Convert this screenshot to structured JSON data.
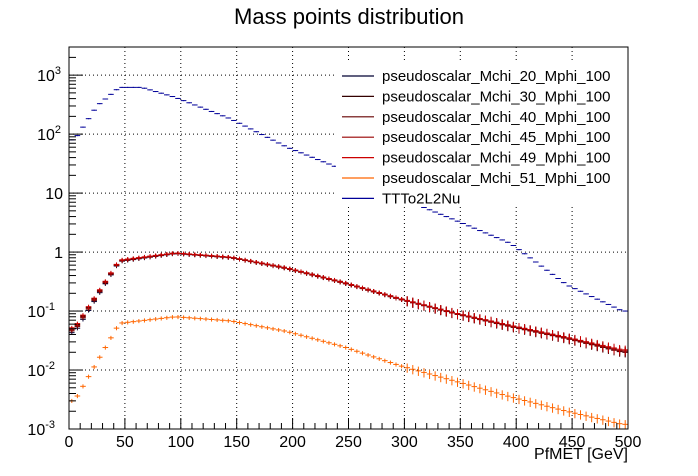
{
  "chart_data": {
    "type": "histogram",
    "title": "Mass points distribution",
    "xlabel": "PfMET [GeV]",
    "ylabel": "",
    "xlim": [
      0,
      500
    ],
    "ylim": [
      0.001,
      3000
    ],
    "y_scale": "log",
    "grid": true,
    "legend_placement": "top-right",
    "x_ticks": [
      {
        "value": 0,
        "label": "0"
      },
      {
        "value": 50,
        "label": "50"
      },
      {
        "value": 100,
        "label": "100"
      },
      {
        "value": 150,
        "label": "150"
      },
      {
        "value": 200,
        "label": "200"
      },
      {
        "value": 250,
        "label": "250"
      },
      {
        "value": 300,
        "label": "300"
      },
      {
        "value": 350,
        "label": "350"
      },
      {
        "value": 400,
        "label": "400"
      },
      {
        "value": 450,
        "label": "450"
      },
      {
        "value": 500,
        "label": "500"
      }
    ],
    "y_ticks": [
      {
        "value": 0.001,
        "base": "10",
        "exp": "-3"
      },
      {
        "value": 0.01,
        "base": "10",
        "exp": "-2"
      },
      {
        "value": 0.1,
        "base": "10",
        "exp": "-1"
      },
      {
        "value": 1,
        "base": "1",
        "exp": ""
      },
      {
        "value": 10,
        "base": "10",
        "exp": ""
      },
      {
        "value": 100,
        "base": "10",
        "exp": "2"
      },
      {
        "value": 1000,
        "base": "10",
        "exp": "3"
      }
    ],
    "series": [
      {
        "name": "pseudoscalar_Mchi_20_Mphi_100",
        "color": "#000033",
        "x": [
          5,
          45,
          95,
          145,
          195,
          245,
          295,
          345,
          395,
          445,
          495
        ],
        "y": [
          0.043,
          0.69,
          0.94,
          0.8,
          0.53,
          0.3,
          0.16,
          0.09,
          0.055,
          0.035,
          0.02
        ]
      },
      {
        "name": "pseudoscalar_Mchi_30_Mphi_100",
        "color": "#330000",
        "x": [
          5,
          45,
          95,
          145,
          195,
          245,
          295,
          345,
          395,
          445,
          495
        ],
        "y": [
          0.05,
          0.72,
          0.96,
          0.82,
          0.54,
          0.31,
          0.165,
          0.093,
          0.057,
          0.036,
          0.021
        ]
      },
      {
        "name": "pseudoscalar_Mchi_40_Mphi_100",
        "color": "#660000",
        "x": [
          5,
          45,
          95,
          145,
          195,
          245,
          295,
          345,
          395,
          445,
          495
        ],
        "y": [
          0.046,
          0.7,
          0.95,
          0.8,
          0.52,
          0.3,
          0.16,
          0.09,
          0.054,
          0.034,
          0.02
        ]
      },
      {
        "name": "pseudoscalar_Mchi_45_Mphi_100",
        "color": "#990000",
        "x": [
          5,
          45,
          95,
          145,
          195,
          245,
          295,
          345,
          395,
          445,
          495
        ],
        "y": [
          0.048,
          0.71,
          0.95,
          0.81,
          0.53,
          0.3,
          0.16,
          0.091,
          0.056,
          0.035,
          0.021
        ]
      },
      {
        "name": "pseudoscalar_Mchi_49_Mphi_100",
        "color": "#cc0000",
        "x": [
          5,
          45,
          95,
          145,
          195,
          245,
          295,
          345,
          395,
          445,
          495
        ],
        "y": [
          0.052,
          0.73,
          0.97,
          0.82,
          0.54,
          0.31,
          0.165,
          0.093,
          0.057,
          0.036,
          0.022
        ]
      },
      {
        "name": "pseudoscalar_Mchi_51_Mphi_100",
        "color": "#ff6600",
        "x": [
          5,
          45,
          95,
          145,
          195,
          245,
          295,
          345,
          395,
          445,
          495
        ],
        "y": [
          0.003,
          0.062,
          0.08,
          0.068,
          0.045,
          0.025,
          0.012,
          0.0065,
          0.0035,
          0.002,
          0.0012
        ]
      },
      {
        "name": "TTTo2L2Nu",
        "color": "#000099",
        "x": [
          5,
          25,
          45,
          65,
          95,
          145,
          195,
          245,
          295,
          345,
          395,
          445,
          495
        ],
        "y": [
          80,
          300,
          620,
          620,
          420,
          180,
          60,
          25,
          8.5,
          3.5,
          1.4,
          0.28,
          0.1
        ]
      }
    ]
  }
}
